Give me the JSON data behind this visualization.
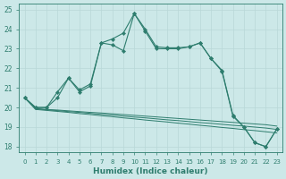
{
  "xlabel": "Humidex (Indice chaleur)",
  "x": [
    0,
    1,
    2,
    3,
    4,
    5,
    6,
    7,
    8,
    9,
    10,
    11,
    12,
    13,
    14,
    15,
    16,
    17,
    18,
    19,
    20,
    21,
    22,
    23
  ],
  "y_main": [
    20.5,
    20.0,
    20.0,
    20.5,
    21.5,
    20.8,
    21.1,
    23.3,
    23.2,
    22.9,
    24.8,
    23.9,
    23.0,
    23.0,
    23.0,
    23.1,
    23.3,
    22.5,
    21.9,
    19.6,
    19.0,
    18.2,
    18.0,
    18.9
  ],
  "y_upper": [
    20.5,
    20.0,
    20.0,
    20.8,
    21.5,
    20.9,
    21.2,
    23.3,
    23.5,
    23.8,
    24.8,
    24.0,
    23.1,
    23.05,
    23.05,
    23.1,
    23.3,
    22.5,
    21.85,
    19.55,
    19.0,
    18.2,
    18.0,
    18.9
  ],
  "y_flat1": [
    20.5,
    19.95,
    19.9,
    19.87,
    19.83,
    19.79,
    19.75,
    19.72,
    19.68,
    19.64,
    19.6,
    19.56,
    19.52,
    19.48,
    19.44,
    19.4,
    19.36,
    19.32,
    19.28,
    19.24,
    19.2,
    19.16,
    19.12,
    19.05
  ],
  "y_flat2": [
    20.5,
    19.93,
    19.88,
    19.84,
    19.79,
    19.75,
    19.7,
    19.65,
    19.61,
    19.56,
    19.51,
    19.47,
    19.42,
    19.37,
    19.33,
    19.28,
    19.23,
    19.19,
    19.14,
    19.09,
    19.05,
    19.0,
    18.95,
    18.88
  ],
  "y_flat3": [
    20.5,
    19.9,
    19.85,
    19.8,
    19.75,
    19.69,
    19.64,
    19.58,
    19.53,
    19.47,
    19.42,
    19.36,
    19.31,
    19.26,
    19.2,
    19.15,
    19.09,
    19.04,
    18.98,
    18.93,
    18.87,
    18.82,
    18.76,
    18.7
  ],
  "color": "#2e7d6e",
  "bg_color": "#cce8e8",
  "grid_color": "#b8d8d8",
  "ylim": [
    17.7,
    25.3
  ],
  "yticks": [
    18,
    19,
    20,
    21,
    22,
    23,
    24,
    25
  ]
}
